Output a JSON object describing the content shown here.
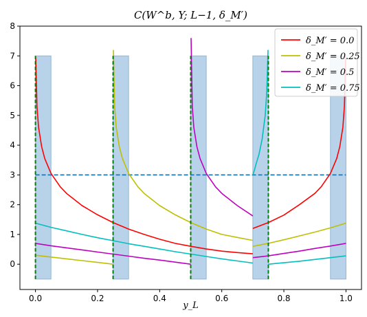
{
  "chart_data": {
    "type": "line",
    "title": "C(W^b, Y; L−1, δ_M′)",
    "xlabel": "y_L",
    "ylabel": "",
    "xlim": [
      -0.05,
      1.05
    ],
    "ylim": [
      -0.85,
      8
    ],
    "xticks": [
      "0.0",
      "0.2",
      "0.4",
      "0.6",
      "0.8",
      "1.0"
    ],
    "xtick_values": [
      0,
      0.2,
      0.4,
      0.6,
      0.8,
      1.0
    ],
    "yticks": [
      "0",
      "1",
      "2",
      "3",
      "4",
      "5",
      "6",
      "7",
      "8"
    ],
    "ytick_values": [
      0,
      1,
      2,
      3,
      4,
      5,
      6,
      7,
      8
    ],
    "grid": false,
    "legend_position": "top-right",
    "shaded_regions": {
      "color": "#b8d3e9",
      "edge": "#8fb5d8",
      "ymin": -0.5,
      "ymax": 7.0,
      "intervals": [
        [
          0,
          0.05
        ],
        [
          0.25,
          0.3
        ],
        [
          0.5,
          0.55
        ],
        [
          0.7,
          0.75
        ],
        [
          0.95,
          1.0
        ]
      ]
    },
    "vertical_lines": {
      "color": "#008000",
      "style": "dashed",
      "x": [
        0,
        0.25,
        0.5,
        0.75
      ],
      "ymin": -0.5,
      "ymax": 7.0
    },
    "horizontal_line": {
      "color": "#1f77b4",
      "style": "dashed",
      "y": 3.0,
      "x_range": [
        0,
        1.0
      ]
    },
    "series": [
      {
        "name": "δ_M′ = 0.0",
        "color": "#ff0000",
        "segments": [
          {
            "x": [
              0.001,
              0.005,
              0.01,
              0.02,
              0.03,
              0.05,
              0.08,
              0.1,
              0.15,
              0.2,
              0.25,
              0.3,
              0.35,
              0.4,
              0.45,
              0.5,
              0.55,
              0.6,
              0.65,
              0.7
            ],
            "y": [
              6.95,
              5.3,
              4.6,
              3.95,
              3.55,
              3.05,
              2.6,
              2.38,
              1.97,
              1.66,
              1.4,
              1.18,
              1.0,
              0.84,
              0.7,
              0.6,
              0.51,
              0.44,
              0.39,
              0.35
            ]
          },
          {
            "x": [
              0.7,
              0.75,
              0.8,
              0.85,
              0.9,
              0.92,
              0.95,
              0.97,
              0.98,
              0.99,
              0.995,
              0.999
            ],
            "y": [
              1.2,
              1.4,
              1.65,
              2.0,
              2.38,
              2.6,
              3.05,
              3.55,
              3.95,
              4.6,
              5.3,
              6.95
            ]
          }
        ]
      },
      {
        "name": "δ_M′ = 0.25",
        "color": "#bfbf00",
        "segments": [
          {
            "x": [
              0,
              0.05,
              0.1,
              0.15,
              0.2,
              0.25
            ],
            "y": [
              0.3,
              0.24,
              0.18,
              0.12,
              0.06,
              0.0
            ]
          },
          {
            "x": [
              0.251,
              0.255,
              0.26,
              0.27,
              0.28,
              0.3,
              0.33,
              0.35,
              0.4,
              0.45,
              0.5,
              0.55,
              0.6,
              0.65,
              0.7
            ],
            "y": [
              7.2,
              5.3,
              4.6,
              3.95,
              3.55,
              3.05,
              2.6,
              2.38,
              1.97,
              1.66,
              1.4,
              1.18,
              1.0,
              0.9,
              0.8
            ]
          },
          {
            "x": [
              0.7,
              0.75,
              0.8,
              0.85,
              0.9,
              0.95,
              1.0
            ],
            "y": [
              0.6,
              0.7,
              0.82,
              0.95,
              1.08,
              1.22,
              1.38
            ]
          }
        ]
      },
      {
        "name": "δ_M′ = 0.5",
        "color": "#bf00bf",
        "segments": [
          {
            "x": [
              0,
              0.05,
              0.1,
              0.15,
              0.2,
              0.25,
              0.3,
              0.35,
              0.4,
              0.45,
              0.5
            ],
            "y": [
              0.7,
              0.62,
              0.55,
              0.48,
              0.41,
              0.34,
              0.27,
              0.2,
              0.14,
              0.07,
              0.0
            ]
          },
          {
            "x": [
              0.501,
              0.505,
              0.51,
              0.52,
              0.53,
              0.55,
              0.58,
              0.6,
              0.65,
              0.7
            ],
            "y": [
              7.6,
              5.3,
              4.6,
              3.95,
              3.55,
              3.05,
              2.6,
              2.38,
              1.97,
              1.62
            ]
          },
          {
            "x": [
              0.7,
              0.75,
              0.8,
              0.85,
              0.9,
              0.95,
              1.0
            ],
            "y": [
              0.22,
              0.28,
              0.36,
              0.44,
              0.53,
              0.61,
              0.7
            ]
          }
        ]
      },
      {
        "name": "δ_M′ = 0.75",
        "color": "#00bfbf",
        "segments": [
          {
            "x": [
              0,
              0.05,
              0.1,
              0.15,
              0.2,
              0.25,
              0.3,
              0.35,
              0.4,
              0.45,
              0.5,
              0.55,
              0.6,
              0.65,
              0.7
            ],
            "y": [
              1.38,
              1.24,
              1.12,
              1.0,
              0.89,
              0.79,
              0.69,
              0.6,
              0.51,
              0.42,
              0.34,
              0.26,
              0.18,
              0.11,
              0.04
            ]
          },
          {
            "x": [
              0.7,
              0.705,
              0.71,
              0.72,
              0.73,
              0.74,
              0.745,
              0.749
            ],
            "y": [
              3.0,
              3.15,
              3.35,
              3.7,
              4.2,
              5.0,
              5.8,
              7.2
            ]
          },
          {
            "x": [
              0.75,
              0.8,
              0.85,
              0.9,
              0.95,
              1.0
            ],
            "y": [
              0.0,
              0.05,
              0.1,
              0.16,
              0.22,
              0.28
            ]
          }
        ]
      }
    ],
    "legend_entries": [
      "δ_M′ = 0.0",
      "δ_M′ = 0.25",
      "δ_M′ = 0.5",
      "δ_M′ = 0.75"
    ]
  }
}
